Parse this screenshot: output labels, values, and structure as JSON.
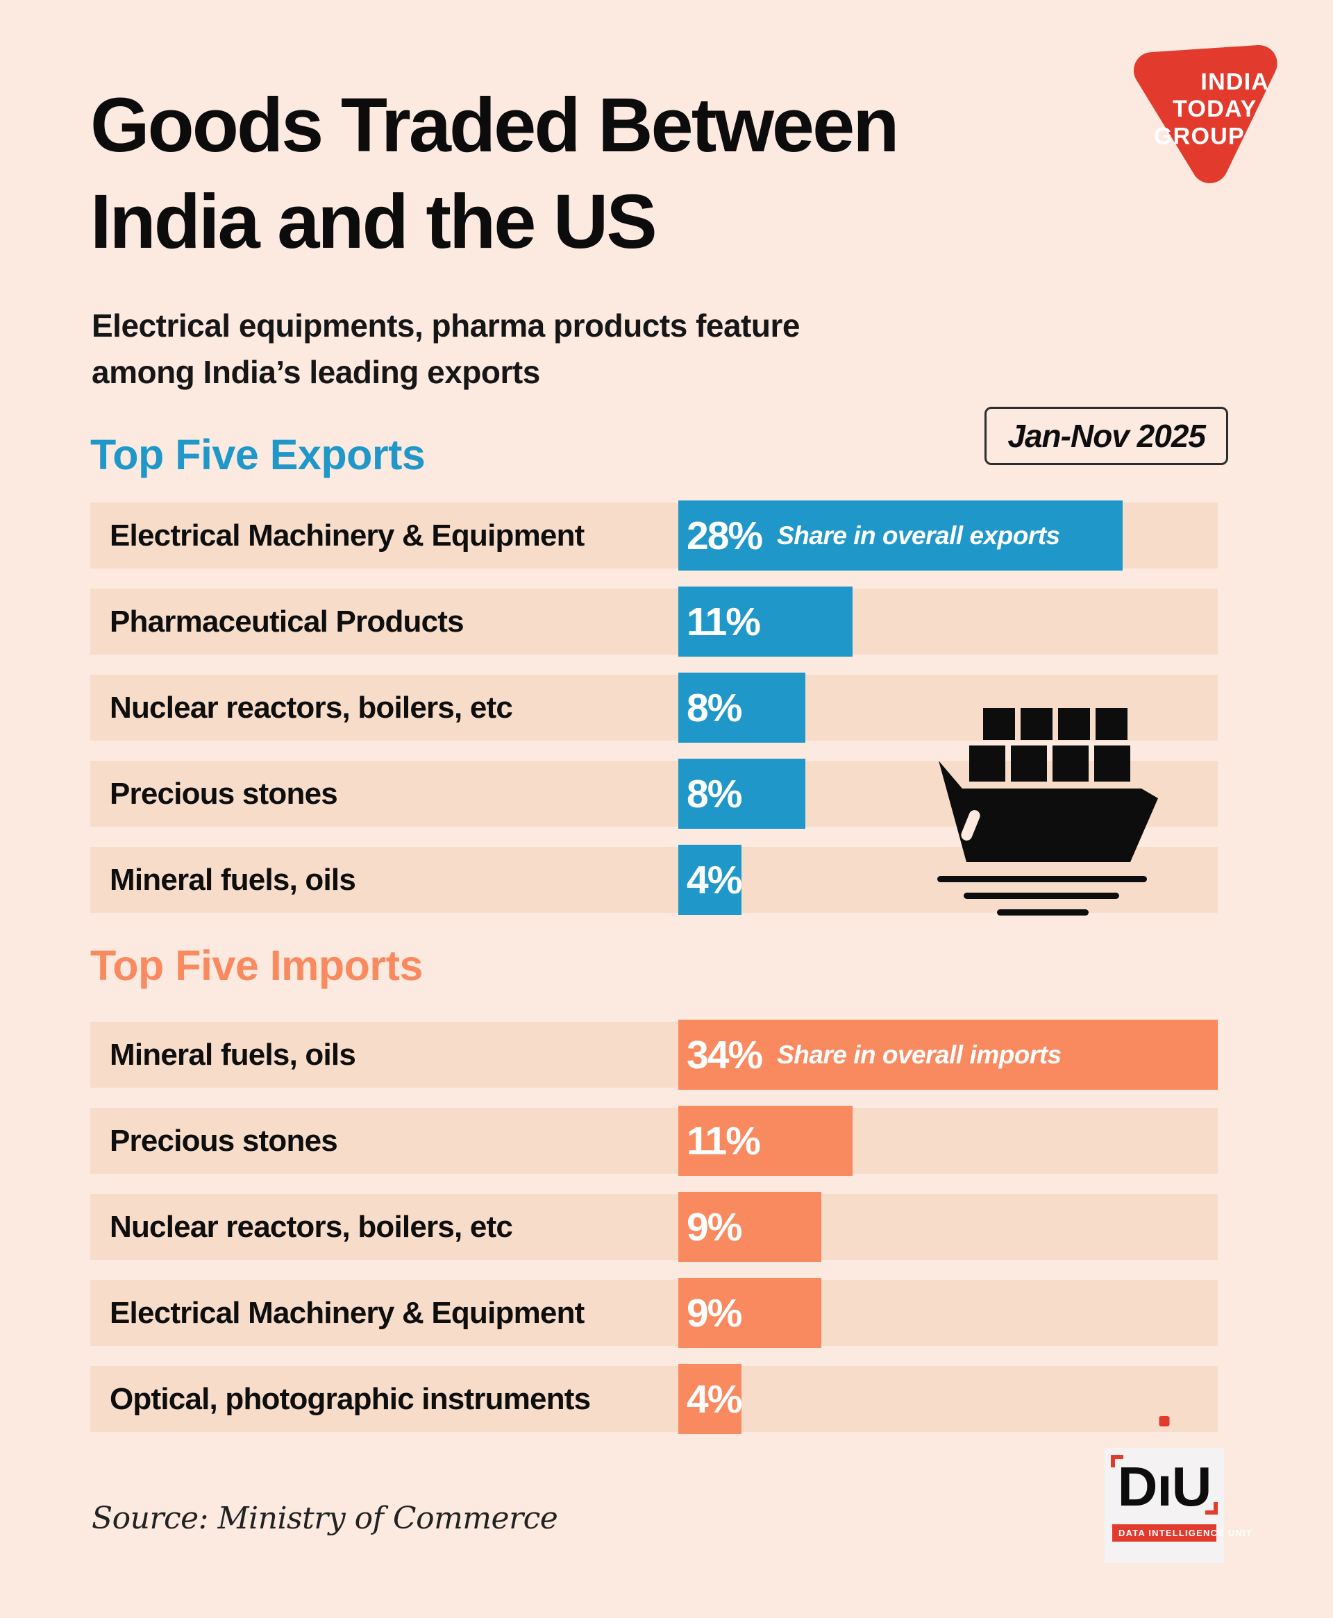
{
  "header": {
    "title_lines": [
      "Goods Traded Between",
      "India and the US"
    ],
    "subtitle_lines": [
      "Electrical equipments, pharma products feature",
      "among India’s leading exports"
    ],
    "period_badge": "Jan-Nov 2025"
  },
  "brand": {
    "logo_lines": [
      "INDIA",
      "TODAY",
      "GROUP"
    ],
    "logo_color": "#e23b2e"
  },
  "exports": {
    "heading": "Top Five Exports",
    "color": "#1f97c9",
    "rows": [
      {
        "label": "Electrical Machinery & Equipment",
        "value": 28,
        "value_label": "28%",
        "note": "Share in overall exports"
      },
      {
        "label": "Pharmaceutical Products",
        "value": 11,
        "value_label": "11%"
      },
      {
        "label": "Nuclear reactors, boilers, etc",
        "value": 8,
        "value_label": "8%"
      },
      {
        "label": "Precious stones",
        "value": 8,
        "value_label": "8%"
      },
      {
        "label": "Mineral fuels, oils",
        "value": 4,
        "value_label": "4%"
      }
    ]
  },
  "imports": {
    "heading": "Top Five Imports",
    "color": "#f98a60",
    "rows": [
      {
        "label": "Mineral fuels, oils",
        "value": 34,
        "value_label": "34%",
        "note": "Share in overall imports"
      },
      {
        "label": "Precious stones",
        "value": 11,
        "value_label": "11%"
      },
      {
        "label": "Nuclear reactors, boilers, etc",
        "value": 9,
        "value_label": "9%"
      },
      {
        "label": "Electrical Machinery & Equipment",
        "value": 9,
        "value_label": "9%"
      },
      {
        "label": "Optical, photographic instruments",
        "value": 4,
        "value_label": "4%"
      }
    ]
  },
  "footer": {
    "source": "Source: Ministry of Commerce"
  },
  "diu": {
    "name": "DiU",
    "letters": {
      "d": "D",
      "i": "ı",
      "u": "U"
    },
    "tagline": "DATA INTELLIGENCE UNIT",
    "accent": "#e23b2e"
  },
  "scale": {
    "bar_max": 34
  },
  "chart_data": [
    {
      "type": "bar",
      "orientation": "horizontal",
      "title": "Top Five Exports",
      "subtitle": "Share in overall exports",
      "period": "Jan-Nov 2025",
      "categories": [
        "Electrical Machinery & Equipment",
        "Pharmaceutical Products",
        "Nuclear reactors, boilers, etc",
        "Precious stones",
        "Mineral fuels, oils"
      ],
      "values": [
        28,
        11,
        8,
        8,
        4
      ],
      "unit": "%",
      "bar_color": "#1f97c9",
      "xlim": [
        0,
        34
      ],
      "grid": false,
      "legend": false
    },
    {
      "type": "bar",
      "orientation": "horizontal",
      "title": "Top Five Imports",
      "subtitle": "Share in overall imports",
      "period": "Jan-Nov 2025",
      "categories": [
        "Mineral fuels, oils",
        "Precious stones",
        "Nuclear reactors, boilers, etc",
        "Electrical Machinery & Equipment",
        "Optical, photographic instruments"
      ],
      "values": [
        34,
        11,
        9,
        9,
        4
      ],
      "unit": "%",
      "bar_color": "#f98a60",
      "xlim": [
        0,
        34
      ],
      "grid": false,
      "legend": false
    }
  ]
}
